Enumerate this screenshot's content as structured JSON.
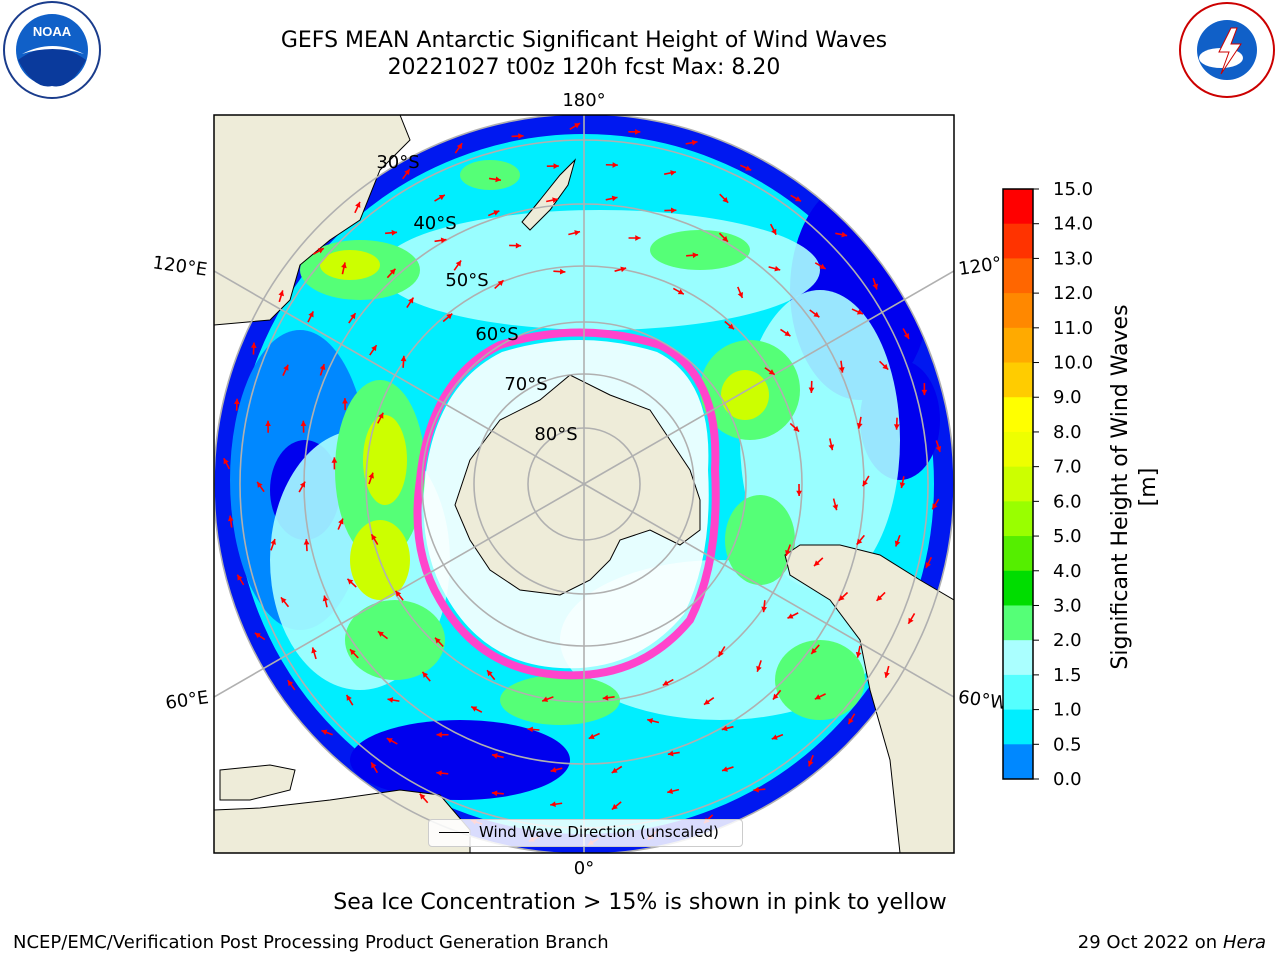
{
  "title": {
    "line1": "GEFS MEAN Antarctic Significant Height of Wind Waves",
    "line2": "20221027 t00z 120h fcst   Max: 8.20"
  },
  "logos": {
    "left": "noaa-logo",
    "right": "nws-logo"
  },
  "map": {
    "longitude_labels": {
      "top": "180°",
      "bottom": "0°",
      "upper_left": "120°E",
      "lower_left": "60°E",
      "upper_right": "120°",
      "lower_right": "60°W"
    },
    "latitude_labels": [
      "30°S",
      "40°S",
      "50°S",
      "60°S",
      "70°S",
      "80°S"
    ],
    "legend": {
      "label": "Wind Wave Direction (unscaled)"
    },
    "colors": {
      "land": "#eeecd9",
      "ice_mask": "#ffffff",
      "arrows": "#ff0000",
      "sea_ice_edge": "#ff44cc"
    }
  },
  "colorbar": {
    "title": "Significant Height of Wind Waves [m]",
    "ticks": [
      "15.0",
      "14.0",
      "13.0",
      "12.0",
      "11.0",
      "10.0",
      "9.0",
      "8.0",
      "7.0",
      "6.0",
      "5.0",
      "4.0",
      "3.0",
      "2.0",
      "1.5",
      "1.0",
      "0.5",
      "0.0"
    ],
    "colors": [
      "#ff0000",
      "#ff3300",
      "#ff6600",
      "#ff8800",
      "#ffaa00",
      "#ffcc00",
      "#ffff00",
      "#eeff00",
      "#ccff00",
      "#99ff00",
      "#55ee00",
      "#00dd00",
      "#55ff77",
      "#aaffff",
      "#55ffff",
      "#00eeff",
      "#0088ff",
      "#0000ee"
    ]
  },
  "caption": "Sea Ice Concentration > 15% is shown in pink to yellow",
  "footer": {
    "left": "NCEP/EMC/Verification Post Processing Product Generation Branch",
    "right_prefix": "29 Oct 2022 on ",
    "right_host": "Hera"
  }
}
